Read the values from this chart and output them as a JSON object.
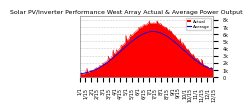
{
  "title": "Solar PV/Inverter Performance West Array Actual & Average Power Output",
  "ylabel_right_labels": [
    "8k",
    "7k",
    "6k",
    "5k",
    "4k",
    "3k",
    "2k",
    "1k",
    "0"
  ],
  "ylabel_right_values": [
    8000,
    7000,
    6000,
    5000,
    4000,
    3000,
    2000,
    1000,
    0
  ],
  "ylim": [
    0,
    8500
  ],
  "background_color": "#ffffff",
  "plot_bg_color": "#ffffff",
  "fill_color": "#ff0000",
  "line_color": "#cc0000",
  "avg_line_color": "#0000ff",
  "grid_color": "#cccccc",
  "n_points": 200,
  "legend_actual_color": "#ff0000",
  "legend_avg_color": "#0000cc",
  "title_fontsize": 4.5,
  "tick_fontsize": 3.5
}
